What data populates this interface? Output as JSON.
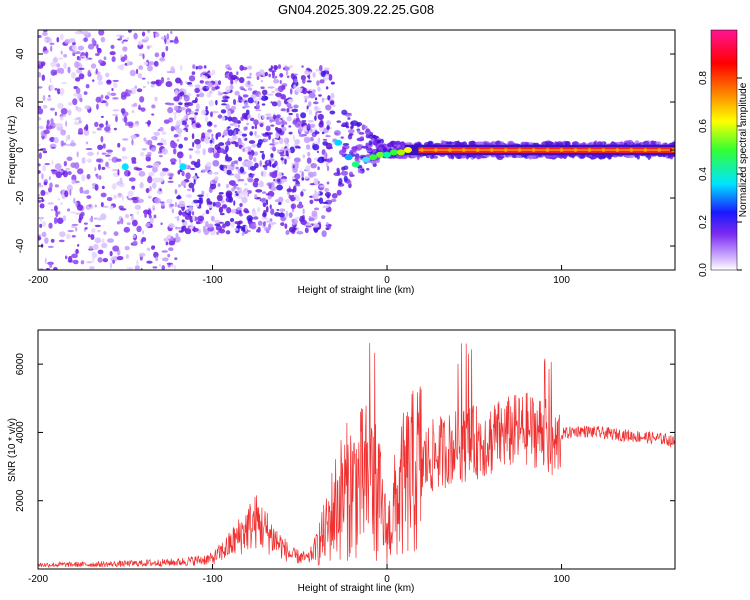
{
  "chart_data": [
    {
      "type": "heatmap",
      "title": "GN04.2025.309.22.25.G08",
      "xlabel": "Height of straight line (km)",
      "ylabel": "Frequency (Hz)",
      "xlim": [
        -200,
        165
      ],
      "ylim": [
        -50,
        50
      ],
      "xticks": [
        -200,
        -100,
        0,
        100
      ],
      "yticks": [
        -40,
        -20,
        0,
        20,
        40
      ],
      "colorbar": {
        "label": "Normalized spectral amplitude",
        "range": [
          0,
          1
        ],
        "ticks": [
          "0.0",
          "0.2",
          "0.4",
          "0.6",
          "0.8"
        ],
        "colors": [
          "#ffffff",
          "#7b2bf0",
          "#1a1aff",
          "#00e5ff",
          "#33ff33",
          "#ffff00",
          "#ff8000",
          "#ff0000",
          "#ff1493"
        ]
      },
      "ridge": {
        "description_points_x": [
          -150,
          -120,
          -40,
          -25,
          -15,
          -5,
          5,
          20,
          60,
          100,
          165
        ],
        "frequency_hz": [
          -6,
          -6,
          0,
          2,
          -5,
          -3,
          0,
          0,
          0,
          0,
          0
        ],
        "amplitude": [
          0.45,
          0.45,
          0.2,
          0.35,
          0.45,
          0.55,
          0.6,
          0.95,
          0.95,
          0.95,
          0.95
        ]
      }
    },
    {
      "type": "line",
      "title": "",
      "xlabel": "Height of straight line (km)",
      "ylabel": "SNR (10 * v/v)",
      "xlim": [
        -200,
        165
      ],
      "ylim": [
        0,
        7000
      ],
      "xticks": [
        -200,
        -100,
        0,
        100
      ],
      "yticks": [
        2000,
        4000,
        6000
      ],
      "series": [
        {
          "name": "SNR",
          "color": "#f03030",
          "x": [
            -200,
            -160,
            -120,
            -100,
            -90,
            -80,
            -75,
            -65,
            -55,
            -45,
            -35,
            -30,
            -25,
            -20,
            -15,
            -10,
            -5,
            0,
            5,
            10,
            15,
            20,
            30,
            40,
            50,
            60,
            70,
            80,
            90,
            95,
            100,
            110,
            120,
            130,
            140,
            150,
            160,
            165
          ],
          "values": [
            120,
            140,
            200,
            300,
            700,
            1200,
            1400,
            900,
            400,
            300,
            1100,
            1800,
            2200,
            2400,
            2500,
            2700,
            2200,
            1000,
            1900,
            2500,
            2800,
            3100,
            3400,
            3600,
            3700,
            3800,
            4000,
            4100,
            4000,
            3400,
            3950,
            4050,
            4000,
            3950,
            3900,
            3850,
            3800,
            3700
          ]
        }
      ]
    }
  ]
}
